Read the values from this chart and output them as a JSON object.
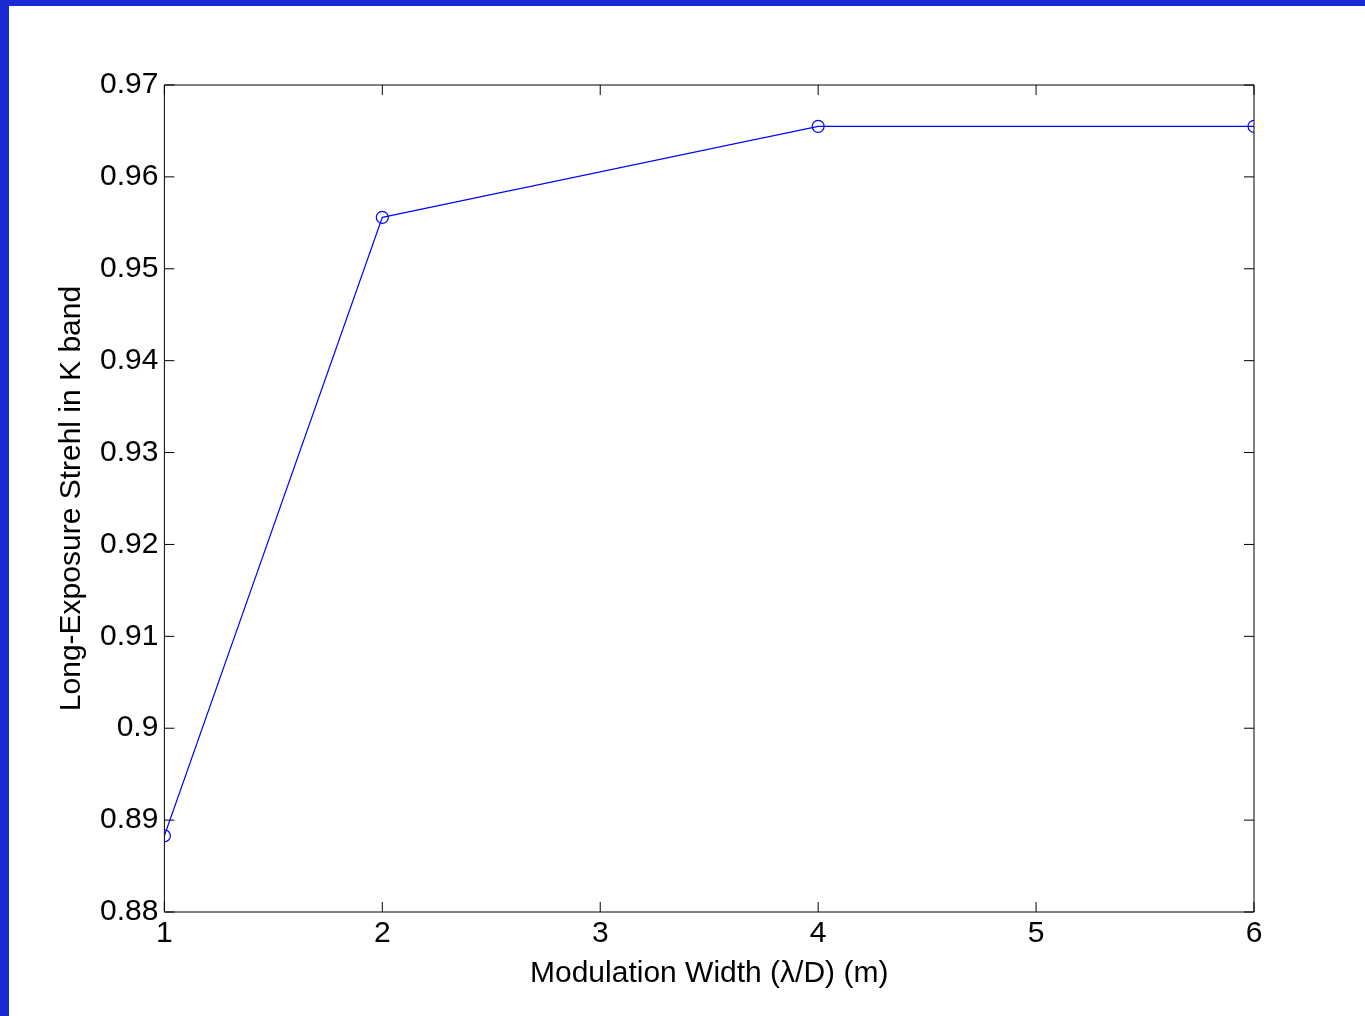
{
  "chart_data": {
    "type": "line",
    "xlabel": "Modulation Width (λ/D) (m)",
    "ylabel": "Long-Exposure Strehl in K band",
    "x": [
      1,
      2,
      4,
      6
    ],
    "series": [
      {
        "color": "#0000ff",
        "values": [
          0.8883,
          0.9556,
          0.9655,
          0.9655
        ]
      }
    ],
    "xlim": [
      1,
      6
    ],
    "xticks": [
      1,
      2,
      3,
      4,
      5,
      6
    ],
    "ylim": [
      0.88,
      0.97
    ],
    "yticks": [
      0.88,
      0.89,
      0.9,
      0.91,
      0.92,
      0.93,
      0.94,
      0.95,
      0.96,
      0.97
    ],
    "marker": "circle",
    "line_style": "solid"
  }
}
